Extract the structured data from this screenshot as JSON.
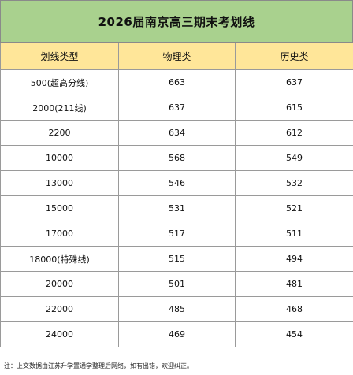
{
  "title": "2026届南京高三期末考划线",
  "table": {
    "headers": [
      "划线类型",
      "物理类",
      "历史类"
    ],
    "rows": [
      [
        "500(超高分线)",
        "663",
        "637"
      ],
      [
        "2000(211线)",
        "637",
        "615"
      ],
      [
        "2200",
        "634",
        "612"
      ],
      [
        "10000",
        "568",
        "549"
      ],
      [
        "13000",
        "546",
        "532"
      ],
      [
        "15000",
        "531",
        "521"
      ],
      [
        "17000",
        "517",
        "511"
      ],
      [
        "18000(特殊线)",
        "515",
        "494"
      ],
      [
        "20000",
        "501",
        "481"
      ],
      [
        "22000",
        "485",
        "468"
      ],
      [
        "24000",
        "469",
        "454"
      ]
    ]
  },
  "footnote": "注：上文数据由江苏升学置通学整理后网络，如有出错，欢迎纠正。",
  "colors": {
    "title_bg": "#a9d18e",
    "header_bg": "#ffe699",
    "border": "#9a9a9a"
  }
}
